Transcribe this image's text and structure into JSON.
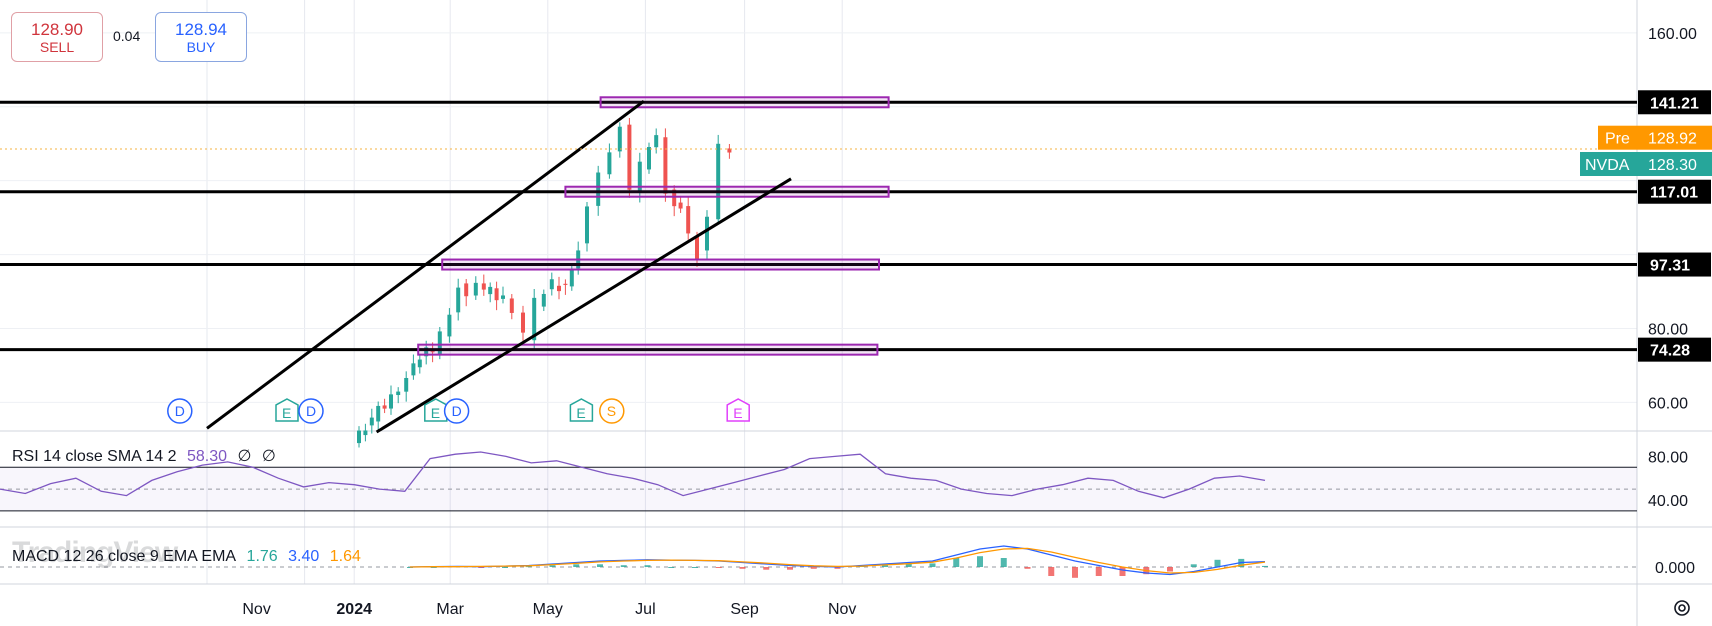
{
  "trade": {
    "sell_price": "128.90",
    "sell_label": "SELL",
    "spread": "0.04",
    "buy_price": "128.94",
    "buy_label": "BUY"
  },
  "rsi_legend": {
    "name": "RSI 14 close SMA 14 2",
    "value": "58.30",
    "v2": "∅",
    "v3": "∅"
  },
  "macd_legend": {
    "name": "MACD 12 26 close 9 EMA EMA",
    "v1": "1.76",
    "v2": "3.40",
    "v3": "1.64"
  },
  "watermark": "TradingView",
  "colors": {
    "up": "#26a69a",
    "down": "#ef5350",
    "zone": "#9c27b0",
    "rsi": "#7e57c2",
    "macd": "#2962ff",
    "signal": "#ff9800",
    "nvda": "#26a69a",
    "pre": "#ff9800"
  },
  "chart_data": {
    "type": "candlestick",
    "symbol": "NVDA",
    "x_ticks": [
      "Nov",
      "2024",
      "Mar",
      "May",
      "Jul",
      "Sep",
      "Nov"
    ],
    "price_axis_ticks": [
      "160.00",
      "80.00",
      "60.00"
    ],
    "ylim": [
      52,
      164
    ],
    "price_series": {
      "dates": [
        "2024-01-02",
        "2024-01-10",
        "2024-01-18",
        "2024-01-26",
        "2024-02-05",
        "2024-02-13",
        "2024-02-21",
        "2024-02-26",
        "2024-03-04",
        "2024-03-08",
        "2024-03-14",
        "2024-03-20",
        "2024-03-28",
        "2024-04-05",
        "2024-04-12",
        "2024-04-19",
        "2024-04-26",
        "2024-05-06",
        "2024-05-14",
        "2024-05-22",
        "2024-05-29",
        "2024-06-05",
        "2024-06-12",
        "2024-06-18",
        "2024-06-24",
        "2024-07-01",
        "2024-07-10",
        "2024-07-17",
        "2024-07-25",
        "2024-08-05",
        "2024-08-12",
        "2024-08-19",
        "2024-08-26"
      ],
      "close": [
        49,
        53,
        58,
        61,
        67,
        73,
        74,
        79,
        85,
        92,
        88,
        91,
        90,
        88,
        85,
        78,
        87,
        92,
        91,
        102,
        112,
        121,
        128,
        136,
        118,
        124,
        132,
        117,
        112,
        100,
        109,
        129,
        128.3
      ]
    },
    "horizontal_levels": [
      141.21,
      117.01,
      97.31,
      74.28
    ],
    "zones": [
      {
        "label": "141.21",
        "x_from": "2024-06-03",
        "x_to": "2024-11-30",
        "y": 141.21
      },
      {
        "label": "117.01",
        "x_from": "2024-05-12",
        "x_to": "2024-11-30",
        "y": 117.01
      },
      {
        "label": "97.31",
        "x_from": "2024-02-25",
        "x_to": "2024-11-24",
        "y": 97.31
      },
      {
        "label": "74.28",
        "x_from": "2024-02-10",
        "x_to": "2024-11-23",
        "y": 74.28
      }
    ],
    "channel": {
      "upper": {
        "x": [
          "2023-10-01",
          "2024-06-30"
        ],
        "y": [
          53,
          141.5
        ]
      },
      "lower": {
        "x": [
          "2024-01-15",
          "2024-09-30"
        ],
        "y": [
          52,
          120.5
        ]
      }
    },
    "last_price": {
      "label": "NVDA",
      "value": "128.30"
    },
    "pre_market": {
      "label": "Pre",
      "value": "128.92"
    },
    "events": [
      {
        "date": "2023-09-14",
        "type": "D"
      },
      {
        "date": "2023-11-20",
        "type": "E"
      },
      {
        "date": "2023-12-05",
        "type": "D"
      },
      {
        "date": "2024-02-21",
        "type": "E"
      },
      {
        "date": "2024-03-05",
        "type": "D"
      },
      {
        "date": "2024-05-22",
        "type": "E"
      },
      {
        "date": "2024-06-10",
        "type": "S"
      },
      {
        "date": "2024-08-28",
        "type": "E"
      }
    ],
    "rsi": {
      "axis_ticks": [
        "80.00",
        "40.00"
      ],
      "ylim": [
        20,
        95
      ],
      "bands": [
        70,
        30
      ],
      "values": [
        50,
        46,
        55,
        60,
        48,
        44,
        58,
        66,
        72,
        75,
        70,
        60,
        52,
        56,
        54,
        50,
        48,
        78,
        82,
        84,
        80,
        74,
        76,
        70,
        64,
        60,
        54,
        44,
        50,
        56,
        62,
        68,
        78,
        80,
        82,
        64,
        60,
        58,
        50,
        46,
        44,
        50,
        54,
        60,
        58,
        48,
        42,
        50,
        60,
        62,
        58
      ]
    },
    "macd": {
      "axis_ticks": [
        "0.000"
      ],
      "ylim": [
        -4,
        9
      ],
      "macd_line": [
        0,
        0.1,
        0.2,
        0.1,
        0.3,
        0.5,
        1.0,
        1.5,
        2.0,
        2.2,
        2.4,
        2.3,
        2.2,
        2.0,
        1.5,
        1.0,
        0.5,
        0.2,
        0.0,
        0.5,
        1.0,
        1.5,
        2.0,
        4.0,
        6.0,
        7.0,
        6.0,
        4.0,
        2.0,
        0.5,
        -1.0,
        -2.0,
        -2.5,
        -1.5,
        0.0,
        1.5,
        1.76
      ],
      "signal_line": [
        0,
        0.1,
        0.1,
        0.2,
        0.3,
        0.4,
        0.8,
        1.2,
        1.7,
        2.0,
        2.2,
        2.3,
        2.2,
        2.1,
        1.7,
        1.3,
        0.8,
        0.4,
        0.2,
        0.3,
        0.7,
        1.1,
        1.6,
        3.0,
        4.8,
        6.0,
        6.2,
        5.0,
        3.2,
        1.5,
        0.0,
        -1.2,
        -2.0,
        -1.8,
        -0.8,
        0.6,
        1.64
      ]
    }
  }
}
